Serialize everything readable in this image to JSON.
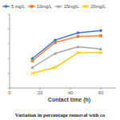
{
  "chart_data": {
    "type": "line",
    "x_label": "Contact time (h)",
    "caption": "Variation in percentage removal with co",
    "x": [
      15,
      30,
      45,
      60
    ],
    "xlim": [
      0,
      70
    ],
    "xticks": [
      0,
      20,
      40,
      60
    ],
    "ylim": [
      0,
      100
    ],
    "yticks": [
      0,
      20,
      40,
      60,
      80,
      100
    ],
    "tick_labels": "x",
    "grid": false,
    "legend": "top",
    "series": [
      {
        "name": "5 mg/L",
        "color": "#4472c4",
        "marker": "diamond",
        "values": [
          40,
          65,
          75,
          78
        ]
      },
      {
        "name": "10mg/L",
        "color": "#ed7d31",
        "marker": "square",
        "values": [
          37,
          62,
          70,
          71
        ]
      },
      {
        "name": "15mg/L",
        "color": "#a5a5a5",
        "marker": "triangle",
        "values": [
          28,
          47,
          56,
          53
        ]
      },
      {
        "name": "20mg/L",
        "color": "#ffc000",
        "marker": "x",
        "values": [
          20,
          28,
          48,
          48
        ]
      }
    ]
  }
}
